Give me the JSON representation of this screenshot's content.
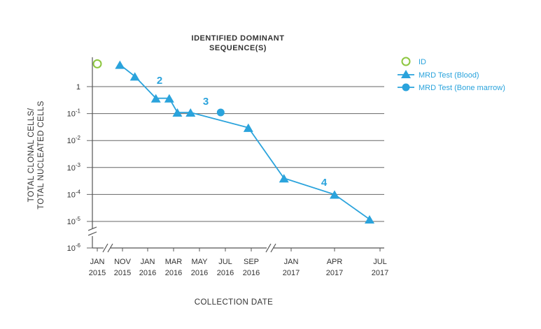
{
  "chart_data": {
    "type": "line",
    "title_lines": [
      "IDENTIFIED DOMINANT",
      "SEQUENCE(S)"
    ],
    "xlabel": "COLLECTION DATE",
    "ylabel_lines": [
      "TOTAL CLONAL CELLS/",
      "TOTAL NUCLEATED CELLS"
    ],
    "x_ticks": [
      {
        "month": "JAN",
        "year": "2015",
        "date": "2015-01"
      },
      {
        "month": "NOV",
        "year": "2015",
        "date": "2015-11"
      },
      {
        "month": "JAN",
        "year": "2016",
        "date": "2016-01"
      },
      {
        "month": "MAR",
        "year": "2016",
        "date": "2016-03"
      },
      {
        "month": "MAY",
        "year": "2016",
        "date": "2016-05"
      },
      {
        "month": "JUL",
        "year": "2016",
        "date": "2016-07"
      },
      {
        "month": "SEP",
        "year": "2016",
        "date": "2016-09"
      },
      {
        "month": "JAN",
        "year": "2017",
        "date": "2017-01"
      },
      {
        "month": "APR",
        "year": "2017",
        "date": "2017-04"
      },
      {
        "month": "JUL",
        "year": "2017",
        "date": "2017-07"
      }
    ],
    "y_ticks": [
      {
        "base": "1",
        "exp": "",
        "value": 1
      },
      {
        "base": "10",
        "exp": "-1",
        "value": 0.1
      },
      {
        "base": "10",
        "exp": "-2",
        "value": 0.01
      },
      {
        "base": "10",
        "exp": "-3",
        "value": 0.001
      },
      {
        "base": "10",
        "exp": "-4",
        "value": 0.0001
      },
      {
        "base": "10",
        "exp": "-5",
        "value": 1e-05
      },
      {
        "base": "10",
        "exp": "-6",
        "value": 1e-06
      }
    ],
    "y_scale": "log",
    "grid": "horizontal",
    "axis_breaks": {
      "x": [
        "between JAN 2015 and NOV 2015",
        "between SEP 2016 and JAN 2017"
      ],
      "y": "between 10-5 and 10-6"
    },
    "legend_position": "top-right",
    "series": [
      {
        "name": "ID",
        "marker": "open-circle",
        "color": "#8dc63f",
        "points": [
          {
            "date": "2015-01",
            "y": 7
          }
        ]
      },
      {
        "name": "MRD Test (Blood)",
        "marker": "triangle",
        "color": "#2aa3dc",
        "points": [
          {
            "date": "2015-10",
            "y": 6.5
          },
          {
            "date": "2015-12",
            "y": 2.4
          },
          {
            "date": "2016-01-20",
            "y": 0.37
          },
          {
            "date": "2016-02-20",
            "y": 0.37
          },
          {
            "date": "2016-03-10",
            "y": 0.11
          },
          {
            "date": "2016-04-10",
            "y": 0.11
          },
          {
            "date": "2016-08-25",
            "y": 0.03
          },
          {
            "date": "2016-12-10",
            "y": 0.0004
          },
          {
            "date": "2017-04",
            "y": 0.0001
          },
          {
            "date": "2017-06-10",
            "y": 1.2e-05
          }
        ]
      },
      {
        "name": "MRD Test (Bone marrow)",
        "marker": "circle",
        "color": "#2aa3dc",
        "points": [
          {
            "date": "2016-06-20",
            "y": 0.11
          }
        ]
      }
    ],
    "annotations": [
      {
        "text": "2",
        "near": "2016-01"
      },
      {
        "text": "3",
        "near": "2016-05"
      },
      {
        "text": "4",
        "near": "2017-03"
      }
    ]
  }
}
